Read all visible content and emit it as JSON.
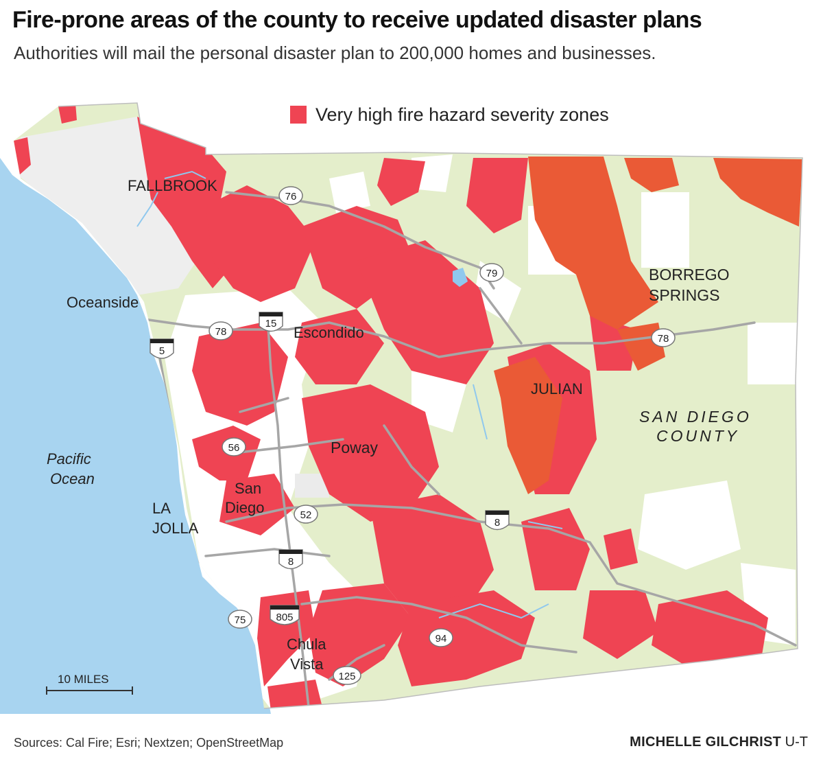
{
  "header": {
    "title": "Fire-prone areas of the county to receive updated disaster plans",
    "subtitle": "Authorities will mail the personal disaster plan to 200,000 homes and businesses."
  },
  "legend": {
    "label": "Very high fire hazard severity zones",
    "color": "#ef4453"
  },
  "colors": {
    "ocean": "#a8d4f0",
    "land_wildland": "#e4eecb",
    "urban": "#ffffff",
    "urban_gray": "#ececec",
    "fire_zone": "#ef4453",
    "fire_zone_dark": "#ea5a36",
    "roads": "#a6a6a6",
    "water": "#8fc8ee"
  },
  "places": {
    "fallbrook": "FALLBROOK",
    "oceanside": "Oceanside",
    "escondido": "Escondido",
    "borrego_line1": "BORREGO",
    "borrego_line2": "SPRINGS",
    "julian": "JULIAN",
    "county_line1": "SAN DIEGO",
    "county_line2": "COUNTY",
    "poway": "Poway",
    "san_diego_line1": "San",
    "san_diego_line2": "Diego",
    "la_jolla_line1": "LA",
    "la_jolla_line2": "JOLLA",
    "chula_line1": "Chula",
    "chula_line2": "Vista",
    "ocean_line1": "Pacific",
    "ocean_line2": "Ocean"
  },
  "highways": {
    "sr76": "76",
    "sr79": "79",
    "i15": "15",
    "sr78_west": "78",
    "sr78_east": "78",
    "i5": "5",
    "sr56": "56",
    "sr52": "52",
    "i8_west": "8",
    "i8_east": "8",
    "sr75": "75",
    "i805": "805",
    "sr94": "94",
    "sr125": "125"
  },
  "scale_bar": {
    "label": "10 MILES",
    "miles": 10
  },
  "footer": {
    "sources": "Sources: Cal Fire; Esri; Nextzen; OpenStreetMap",
    "credit_name": "MICHELLE GILCHRIST",
    "credit_org": "U-T"
  }
}
